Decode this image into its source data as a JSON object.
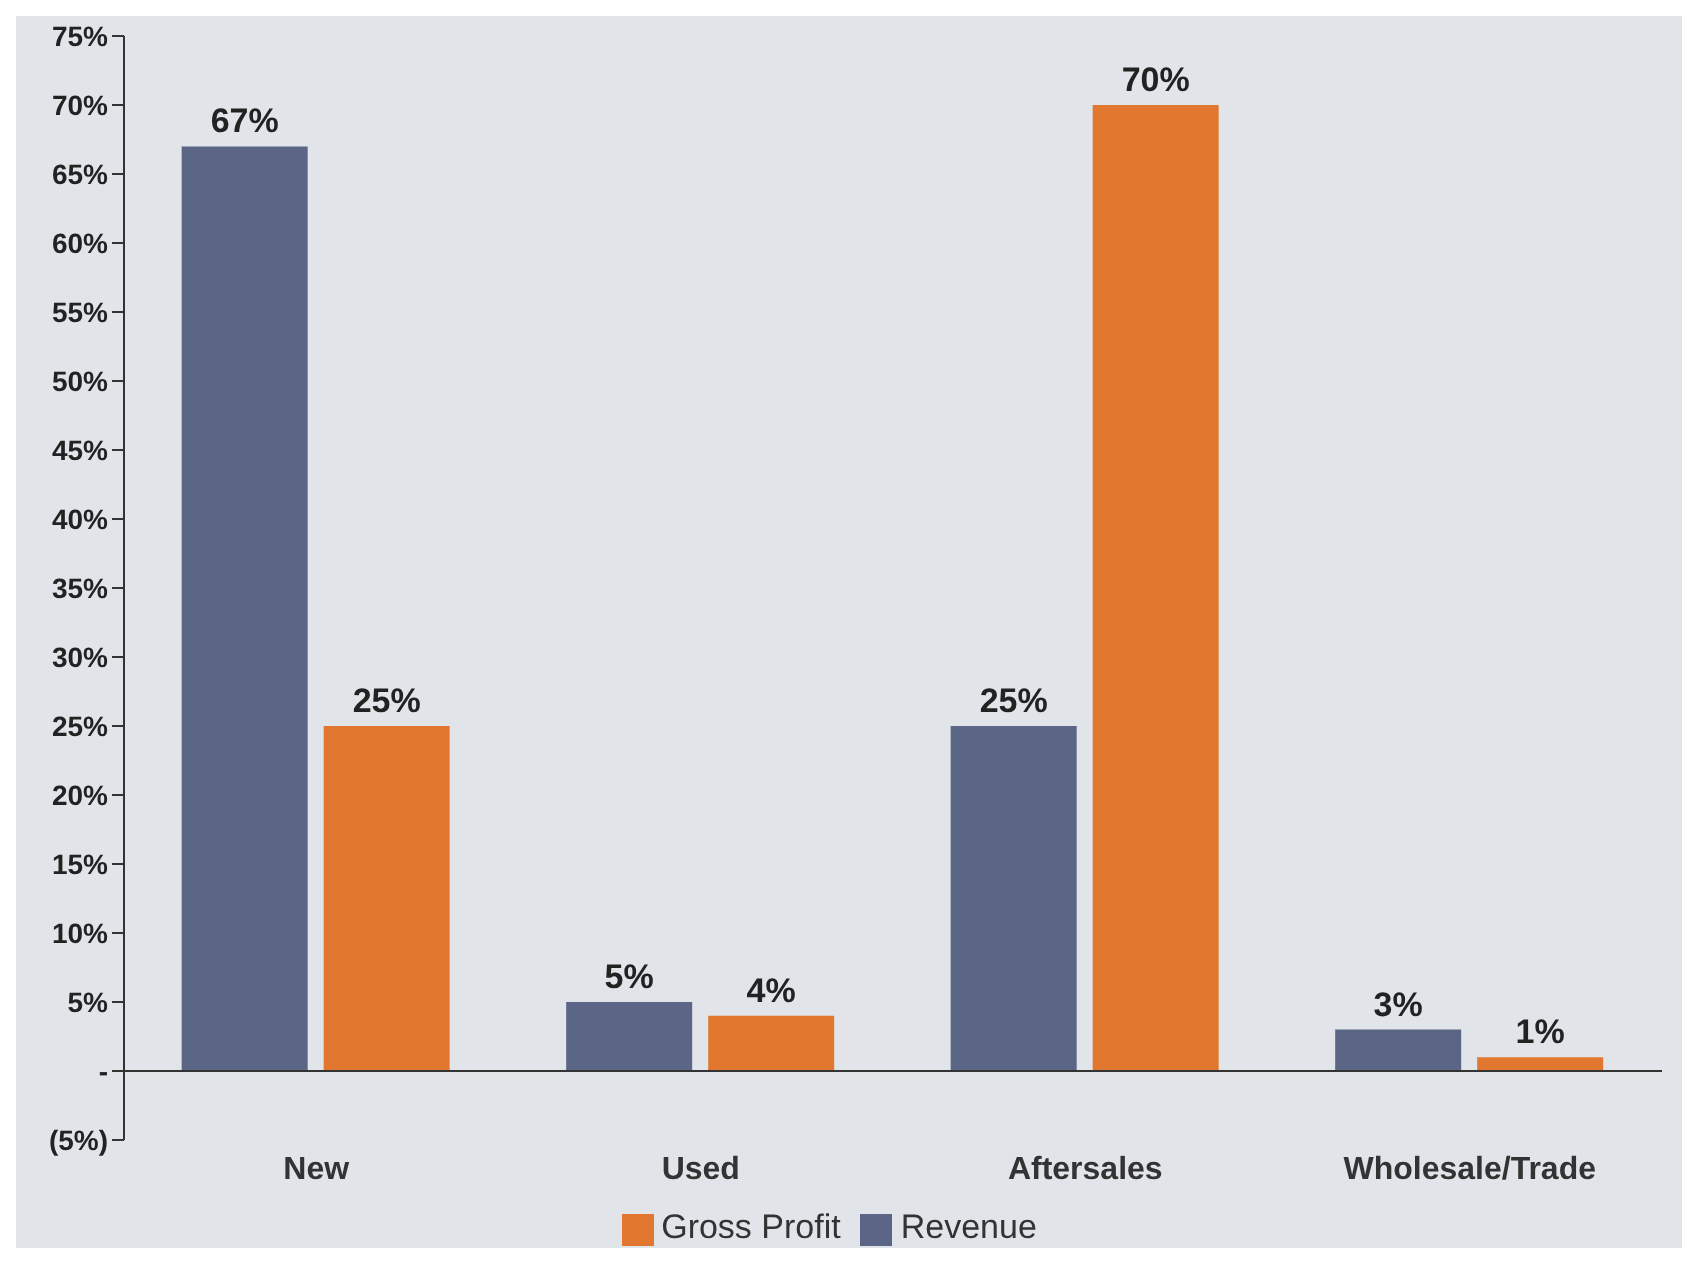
{
  "chart_data": {
    "type": "bar",
    "categories": [
      "New",
      "Used",
      "Aftersales",
      "Wholesale/Trade"
    ],
    "series": [
      {
        "name": "Revenue",
        "color": "#5b6686",
        "values": [
          67,
          5,
          25,
          3
        ]
      },
      {
        "name": "Gross Profit",
        "color": "#e2782f",
        "values": [
          25,
          4,
          70,
          1
        ]
      }
    ],
    "ylim": [
      -5,
      75
    ],
    "yticks": [
      {
        "value": -5,
        "label": "(5%)"
      },
      {
        "value": 0,
        "label": "-"
      },
      {
        "value": 5,
        "label": "5%"
      },
      {
        "value": 10,
        "label": "10%"
      },
      {
        "value": 15,
        "label": "15%"
      },
      {
        "value": 20,
        "label": "20%"
      },
      {
        "value": 25,
        "label": "25%"
      },
      {
        "value": 30,
        "label": "30%"
      },
      {
        "value": 35,
        "label": "35%"
      },
      {
        "value": 40,
        "label": "40%"
      },
      {
        "value": 45,
        "label": "45%"
      },
      {
        "value": 50,
        "label": "50%"
      },
      {
        "value": 55,
        "label": "55%"
      },
      {
        "value": 60,
        "label": "60%"
      },
      {
        "value": 65,
        "label": "65%"
      },
      {
        "value": 70,
        "label": "70%"
      },
      {
        "value": 75,
        "label": "75%"
      }
    ],
    "value_labels": [
      [
        "67%",
        "5%",
        "25%",
        "3%"
      ],
      [
        "25%",
        "4%",
        "70%",
        "1%"
      ]
    ],
    "grid": false,
    "legend": "bottom"
  }
}
